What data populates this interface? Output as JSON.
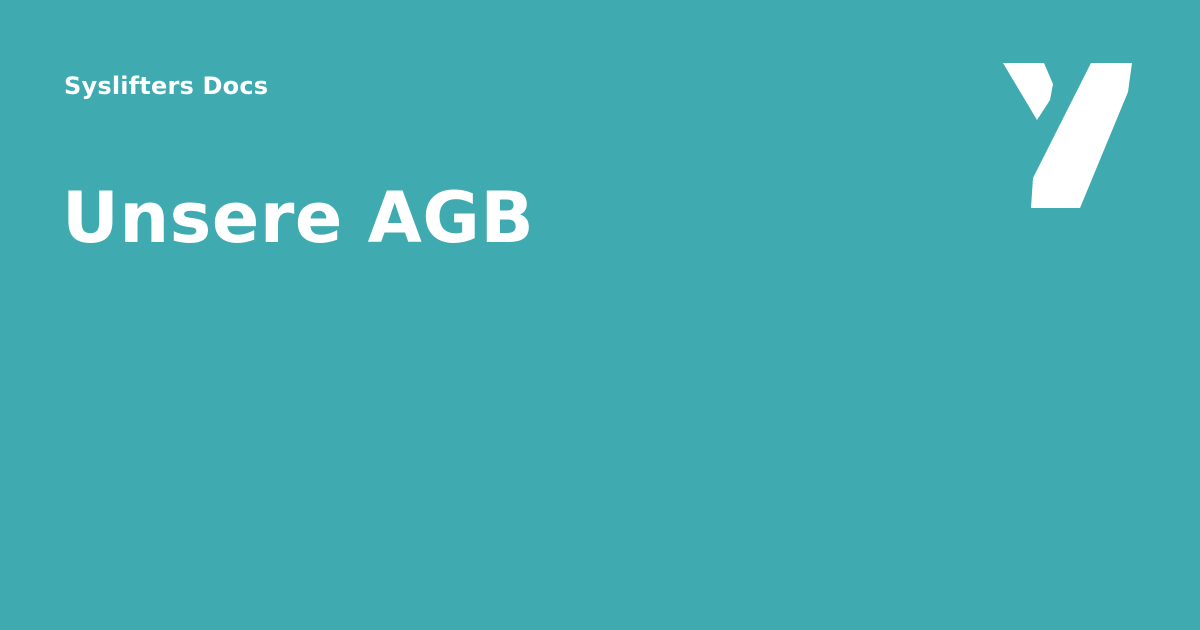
{
  "header": {
    "site_name": "Syslifters Docs",
    "logo_icon": "syslifters-y-logo-icon"
  },
  "main": {
    "title": "Unsere AGB"
  },
  "colors": {
    "background": "#3FABB0",
    "text": "#FFFFFF",
    "logo": "#FFFFFF"
  }
}
